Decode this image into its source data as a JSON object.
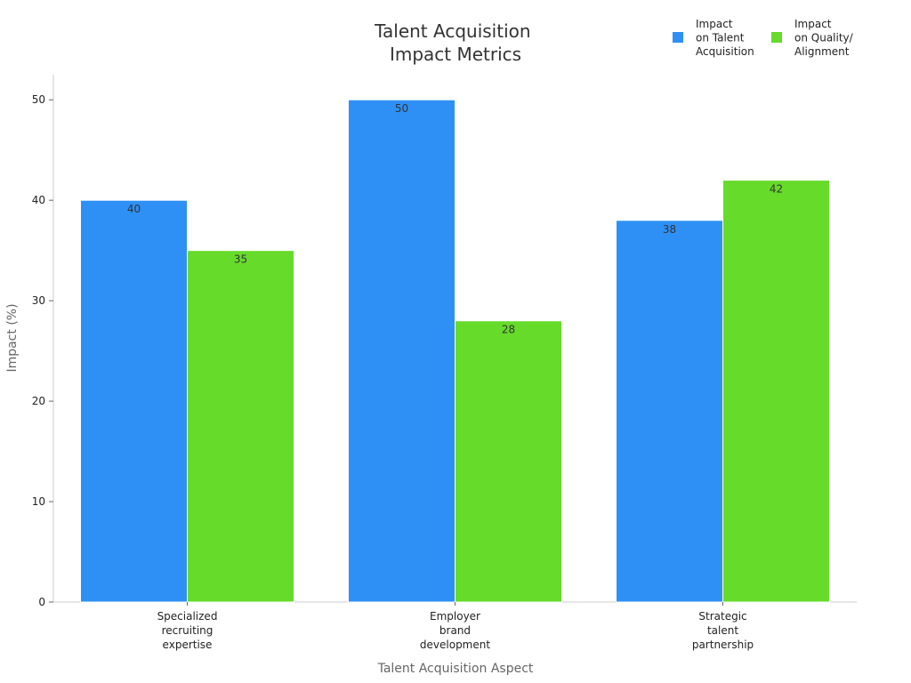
{
  "chart_data": {
    "type": "bar",
    "title": [
      "Talent Acquisition",
      "Impact Metrics"
    ],
    "xlabel": "Talent Acquisition Aspect",
    "ylabel": "Impact (%)",
    "ylim": [
      0,
      52.5
    ],
    "yticks": [
      0,
      10,
      20,
      30,
      40,
      50
    ],
    "grid": false,
    "legend_position": "top-right",
    "categories": [
      [
        "Specialized",
        "recruiting",
        "expertise"
      ],
      [
        "Employer",
        "brand",
        "development"
      ],
      [
        "Strategic",
        "talent",
        "partnership"
      ]
    ],
    "series": [
      {
        "name": [
          "Impact",
          "on Talent",
          "Acquisition"
        ],
        "color": "#2e90f5",
        "values": [
          40,
          50,
          38
        ]
      },
      {
        "name": [
          "Impact",
          "on Quality/",
          "Alignment"
        ],
        "color": "#66db2a",
        "values": [
          35,
          28,
          42
        ]
      }
    ]
  }
}
